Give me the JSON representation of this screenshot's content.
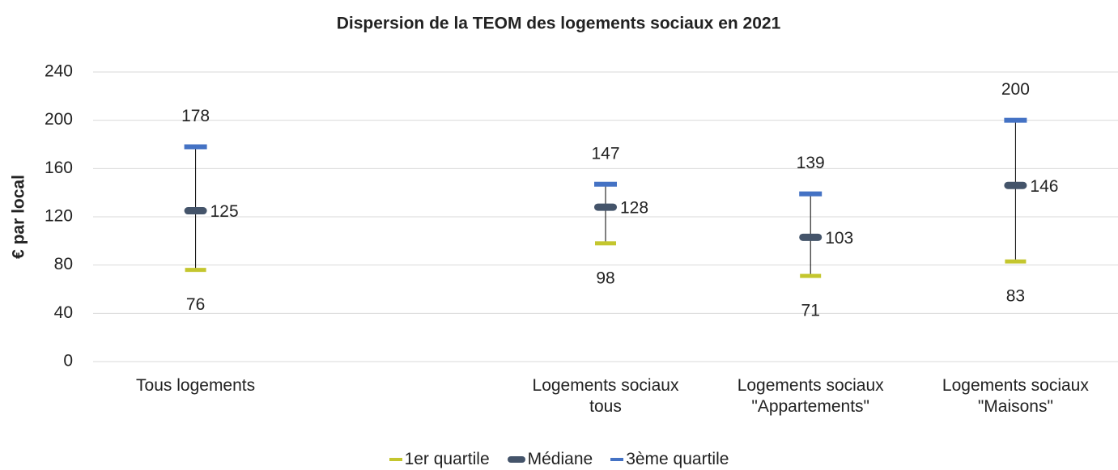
{
  "chart_data": {
    "type": "hilo",
    "title": "Dispersion de la TEOM des logements sociaux en 2021",
    "y_label": "€ par local",
    "categories": [
      "Tous logements",
      null,
      "Logements sociaux tous",
      "Logements sociaux \"Appartements\"",
      "Logements sociaux \"Maisons\""
    ],
    "series": [
      {
        "name": "1er quartile",
        "color": "#c4c62e",
        "values": [
          76,
          null,
          98,
          71,
          83
        ]
      },
      {
        "name": "Médiane",
        "color": "#44546a",
        "values": [
          125,
          null,
          128,
          103,
          146
        ]
      },
      {
        "name": "3ème quartile",
        "color": "#4472c4",
        "values": [
          178,
          null,
          147,
          139,
          200
        ]
      }
    ],
    "ylim": [
      0,
      240
    ],
    "yticks": [
      0,
      40,
      80,
      120,
      160,
      200,
      240
    ],
    "grid": true,
    "legend": "bottom"
  }
}
